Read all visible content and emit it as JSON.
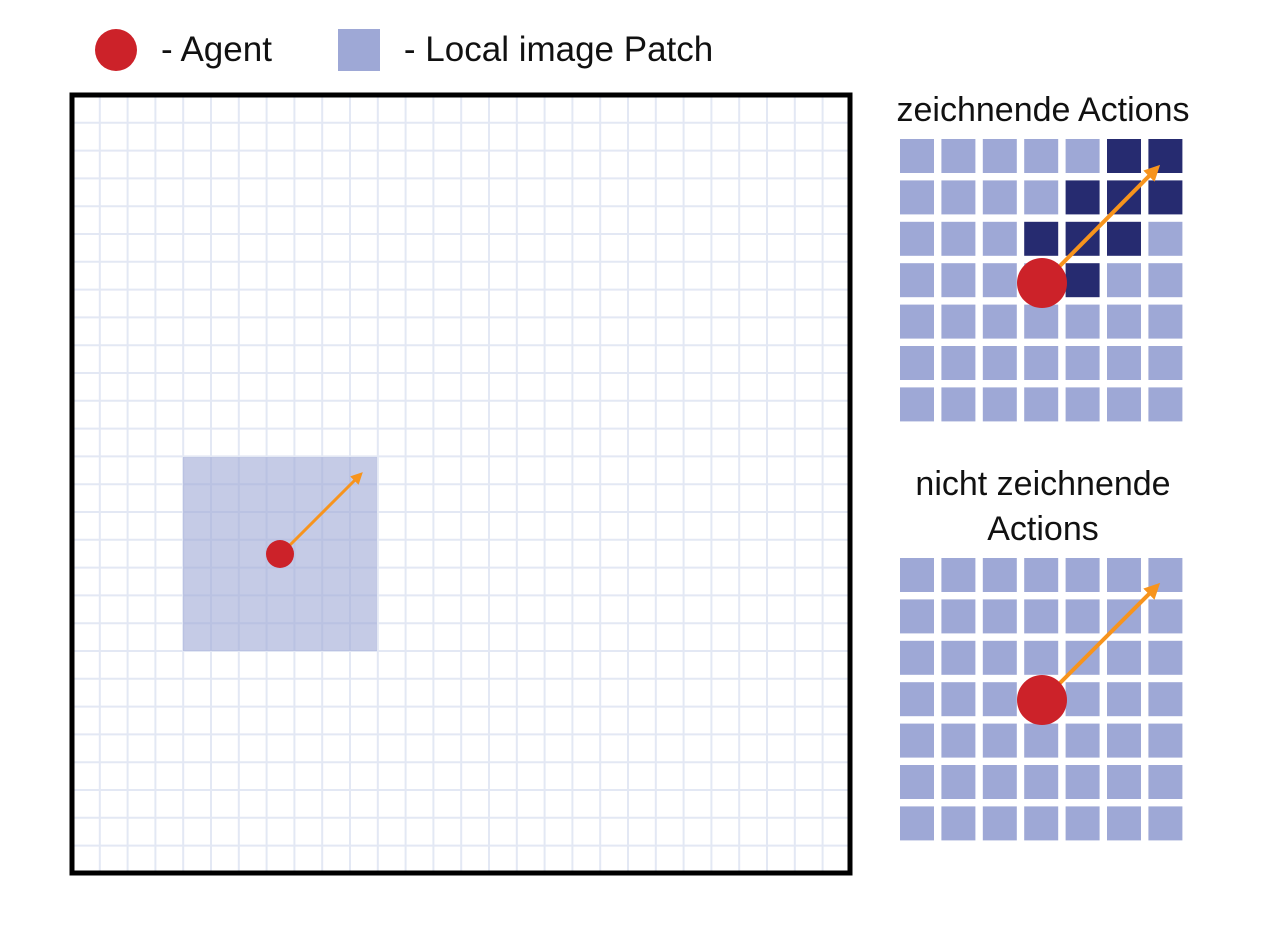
{
  "legend": {
    "agent_label": "- Agent",
    "patch_label": "- Local image Patch"
  },
  "panels": {
    "drawing_title": "zeichnende Actions",
    "nondrawing_title_line1": "nicht zeichnende",
    "nondrawing_title_line2": "Actions"
  },
  "colors": {
    "agent": "#cc2229",
    "patch": "#9ea8d6",
    "drawn": "#262b70",
    "arrow": "#f7941d",
    "grid_line": "#e3e8f4",
    "frame": "#000000"
  },
  "drawing_grid": {
    "rows": 7,
    "cols": 7,
    "drawn_cells": [
      [
        0,
        5
      ],
      [
        0,
        6
      ],
      [
        1,
        4
      ],
      [
        1,
        5
      ],
      [
        1,
        6
      ],
      [
        2,
        3
      ],
      [
        2,
        4
      ],
      [
        2,
        5
      ],
      [
        3,
        4
      ]
    ]
  },
  "nondrawing_grid": {
    "rows": 7,
    "cols": 7,
    "drawn_cells": []
  }
}
